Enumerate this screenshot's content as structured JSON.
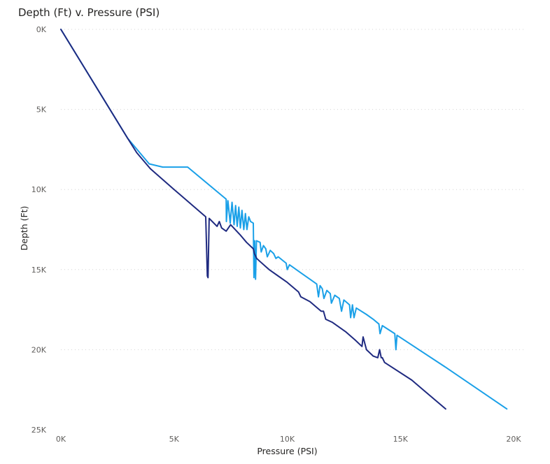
{
  "chart_data": {
    "type": "line",
    "title": "Depth (Ft) v. Pressure (PSI)",
    "xlabel": "Pressure (PSI)",
    "ylabel": "Depth (Ft)",
    "xlim": [
      0,
      20000
    ],
    "ylim": [
      0,
      25000
    ],
    "y_reversed": true,
    "grid": true,
    "x_ticks": [
      0,
      5000,
      10000,
      15000,
      20000
    ],
    "x_tick_labels": [
      "0K",
      "5K",
      "10K",
      "15K",
      "20K"
    ],
    "y_ticks": [
      0,
      5000,
      10000,
      15000,
      20000,
      25000
    ],
    "y_tick_labels": [
      "0K",
      "5K",
      "10K",
      "15K",
      "20K",
      "25K"
    ],
    "series": [
      {
        "color": "#1AA0E8",
        "points": [
          [
            0,
            0
          ],
          [
            2950,
            6800
          ],
          [
            3900,
            8400
          ],
          [
            4500,
            8600
          ],
          [
            5600,
            8600
          ],
          [
            7300,
            10600
          ],
          [
            7310,
            12000
          ],
          [
            7380,
            10700
          ],
          [
            7480,
            12100
          ],
          [
            7560,
            10800
          ],
          [
            7650,
            12200
          ],
          [
            7720,
            11000
          ],
          [
            7790,
            12300
          ],
          [
            7860,
            11100
          ],
          [
            7930,
            12400
          ],
          [
            8000,
            11300
          ],
          [
            8080,
            12500
          ],
          [
            8150,
            11500
          ],
          [
            8220,
            12500
          ],
          [
            8300,
            11700
          ],
          [
            8380,
            12000
          ],
          [
            8500,
            12100
          ],
          [
            8530,
            15500
          ],
          [
            8560,
            13200
          ],
          [
            8600,
            15600
          ],
          [
            8640,
            13200
          ],
          [
            8800,
            13300
          ],
          [
            8850,
            13900
          ],
          [
            8950,
            13500
          ],
          [
            9050,
            13700
          ],
          [
            9120,
            14200
          ],
          [
            9250,
            13800
          ],
          [
            9400,
            14000
          ],
          [
            9500,
            14300
          ],
          [
            9600,
            14200
          ],
          [
            9950,
            14600
          ],
          [
            10000,
            15000
          ],
          [
            10100,
            14700
          ],
          [
            10600,
            15200
          ],
          [
            11000,
            15600
          ],
          [
            11300,
            15900
          ],
          [
            11380,
            16700
          ],
          [
            11450,
            16000
          ],
          [
            11550,
            16200
          ],
          [
            11620,
            16800
          ],
          [
            11750,
            16300
          ],
          [
            11900,
            16500
          ],
          [
            11950,
            17100
          ],
          [
            12100,
            16600
          ],
          [
            12300,
            16800
          ],
          [
            12400,
            17600
          ],
          [
            12500,
            16900
          ],
          [
            12750,
            17200
          ],
          [
            12800,
            18000
          ],
          [
            12880,
            17200
          ],
          [
            12950,
            18000
          ],
          [
            13050,
            17400
          ],
          [
            13500,
            17800
          ],
          [
            13800,
            18100
          ],
          [
            14050,
            18400
          ],
          [
            14100,
            19000
          ],
          [
            14200,
            18500
          ],
          [
            14750,
            19000
          ],
          [
            14800,
            20000
          ],
          [
            14850,
            19100
          ],
          [
            17000,
            21100
          ],
          [
            19700,
            23700
          ]
        ]
      },
      {
        "color": "#1F2A80",
        "points": [
          [
            0,
            0
          ],
          [
            2950,
            6800
          ],
          [
            3350,
            7700
          ],
          [
            3950,
            8700
          ],
          [
            5000,
            10000
          ],
          [
            6400,
            11700
          ],
          [
            6470,
            15400
          ],
          [
            6500,
            15500
          ],
          [
            6550,
            11800
          ],
          [
            6900,
            12300
          ],
          [
            7000,
            12000
          ],
          [
            7100,
            12400
          ],
          [
            7300,
            12600
          ],
          [
            7500,
            12200
          ],
          [
            7900,
            12800
          ],
          [
            8200,
            13300
          ],
          [
            8500,
            13700
          ],
          [
            8550,
            14000
          ],
          [
            8650,
            14300
          ],
          [
            8800,
            14500
          ],
          [
            9200,
            15000
          ],
          [
            9600,
            15400
          ],
          [
            10000,
            15800
          ],
          [
            10500,
            16400
          ],
          [
            10600,
            16700
          ],
          [
            11000,
            17000
          ],
          [
            11500,
            17600
          ],
          [
            11600,
            17600
          ],
          [
            11700,
            18100
          ],
          [
            12000,
            18300
          ],
          [
            12600,
            18900
          ],
          [
            13000,
            19400
          ],
          [
            13300,
            19800
          ],
          [
            13350,
            19200
          ],
          [
            13500,
            20000
          ],
          [
            13800,
            20400
          ],
          [
            14000,
            20500
          ],
          [
            14080,
            20000
          ],
          [
            14150,
            20500
          ],
          [
            14200,
            20500
          ],
          [
            14300,
            20800
          ],
          [
            15500,
            21900
          ],
          [
            16000,
            22500
          ],
          [
            17000,
            23700
          ]
        ]
      }
    ]
  }
}
